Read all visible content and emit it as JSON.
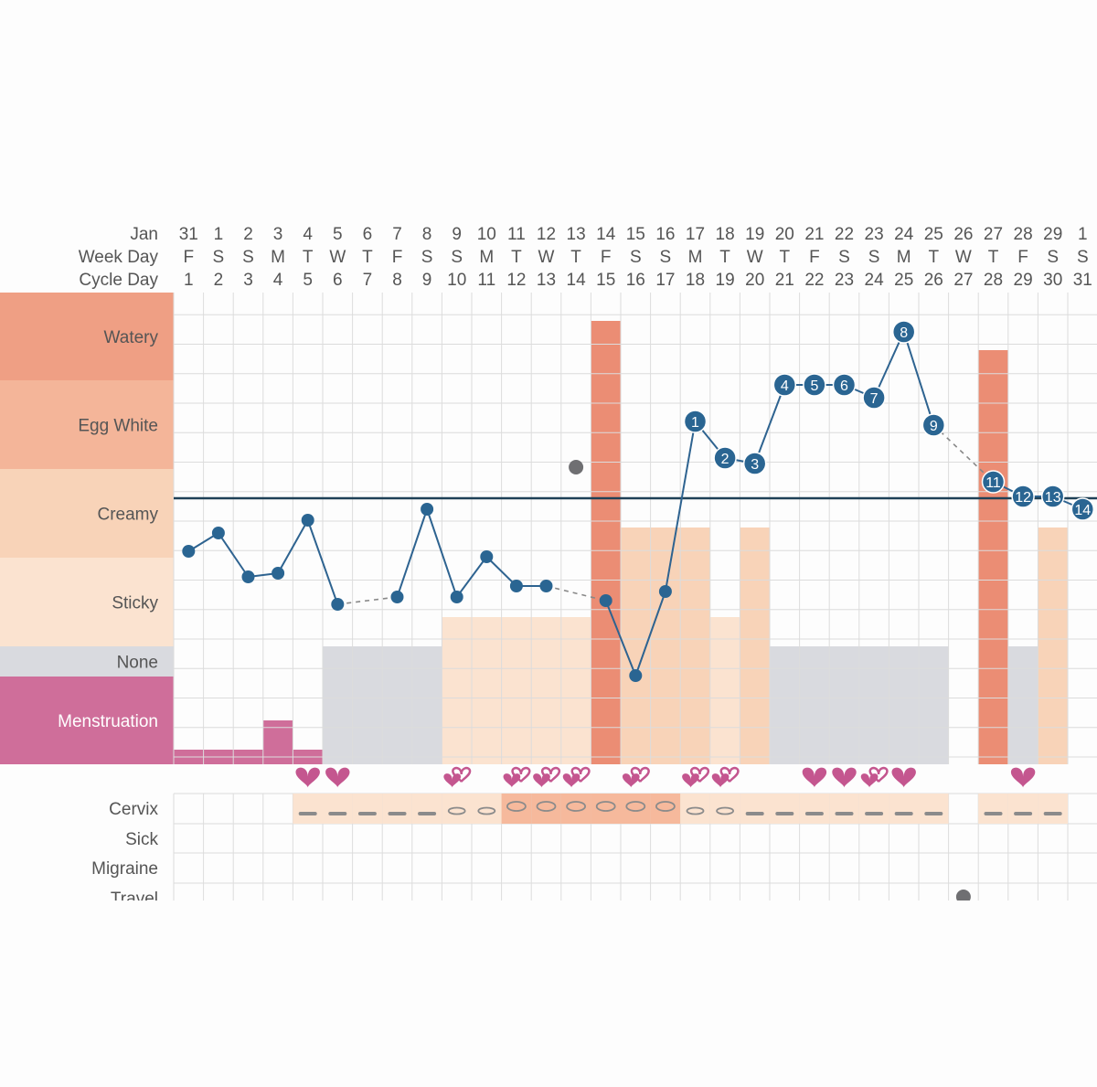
{
  "header": {
    "month_label": "Jan",
    "weekday_label": "Week Day",
    "cycle_day_label": "Cycle Day"
  },
  "chart_data": {
    "type": "line",
    "dates": [
      31,
      1,
      2,
      3,
      4,
      5,
      6,
      7,
      8,
      9,
      10,
      11,
      12,
      13,
      14,
      15,
      16,
      17,
      18,
      19,
      20,
      21,
      22,
      23,
      24,
      25,
      26,
      27,
      28,
      29,
      1
    ],
    "weekdays": [
      "F",
      "S",
      "S",
      "M",
      "T",
      "W",
      "T",
      "F",
      "S",
      "S",
      "M",
      "T",
      "W",
      "T",
      "F",
      "S",
      "S",
      "M",
      "T",
      "W",
      "T",
      "F",
      "S",
      "S",
      "M",
      "T",
      "W",
      "T",
      "F",
      "S",
      "S"
    ],
    "cycle_days": [
      1,
      2,
      3,
      4,
      5,
      6,
      7,
      8,
      9,
      10,
      11,
      12,
      13,
      14,
      15,
      16,
      17,
      18,
      19,
      20,
      21,
      22,
      23,
      24,
      25,
      26,
      27,
      28,
      29,
      30,
      31
    ],
    "y_categories": [
      "Menstruation",
      "None",
      "Sticky",
      "Creamy",
      "Egg White",
      "Watery"
    ],
    "fluid_colors": {
      "menstruation": "#cf6e9a",
      "none": "#d9dadf",
      "sticky": "#fbe3d0",
      "creamy": "#f8d3b8",
      "egg_white": "#f4b599",
      "watery": "#ef9f84",
      "peak": "#eb8d74"
    },
    "fluid_levels": [
      {
        "cycle_day": 1,
        "type": "menstruation",
        "level": 0.2
      },
      {
        "cycle_day": 2,
        "type": "menstruation",
        "level": 0.2
      },
      {
        "cycle_day": 3,
        "type": "menstruation",
        "level": 0.2
      },
      {
        "cycle_day": 4,
        "type": "menstruation",
        "level": 0.6
      },
      {
        "cycle_day": 5,
        "type": "menstruation",
        "level": 0.2
      },
      {
        "cycle_day": 6,
        "type": "none",
        "level": 1
      },
      {
        "cycle_day": 7,
        "type": "none",
        "level": 1
      },
      {
        "cycle_day": 8,
        "type": "none",
        "level": 1
      },
      {
        "cycle_day": 9,
        "type": "none",
        "level": 1
      },
      {
        "cycle_day": 10,
        "type": "sticky",
        "level": 1
      },
      {
        "cycle_day": 11,
        "type": "sticky",
        "level": 1
      },
      {
        "cycle_day": 12,
        "type": "sticky",
        "level": 1
      },
      {
        "cycle_day": 13,
        "type": "sticky",
        "level": 1
      },
      {
        "cycle_day": 14,
        "type": "sticky",
        "level": 1
      },
      {
        "cycle_day": 15,
        "type": "watery",
        "level": 1
      },
      {
        "cycle_day": 16,
        "type": "creamy",
        "level": 1
      },
      {
        "cycle_day": 17,
        "type": "creamy",
        "level": 1
      },
      {
        "cycle_day": 18,
        "type": "creamy",
        "level": 1
      },
      {
        "cycle_day": 19,
        "type": "sticky",
        "level": 1
      },
      {
        "cycle_day": 20,
        "type": "creamy",
        "level": 1
      },
      {
        "cycle_day": 21,
        "type": "none",
        "level": 1
      },
      {
        "cycle_day": 22,
        "type": "none",
        "level": 1
      },
      {
        "cycle_day": 23,
        "type": "none",
        "level": 1
      },
      {
        "cycle_day": 24,
        "type": "none",
        "level": 1
      },
      {
        "cycle_day": 25,
        "type": "none",
        "level": 1
      },
      {
        "cycle_day": 26,
        "type": "none",
        "level": 1
      },
      {
        "cycle_day": 28,
        "type": "watery",
        "level": 0.67
      },
      {
        "cycle_day": 29,
        "type": "none",
        "level": 1
      },
      {
        "cycle_day": 30,
        "type": "creamy",
        "level": 1
      }
    ],
    "temperature": [
      {
        "cycle_day": 1,
        "value": -0.58
      },
      {
        "cycle_day": 2,
        "value": -0.38
      },
      {
        "cycle_day": 3,
        "value": -0.86
      },
      {
        "cycle_day": 4,
        "value": -0.82
      },
      {
        "cycle_day": 5,
        "value": -0.24
      },
      {
        "cycle_day": 6,
        "value": -1.16
      },
      {
        "cycle_day": 8,
        "value": -1.08
      },
      {
        "cycle_day": 9,
        "value": -0.12
      },
      {
        "cycle_day": 10,
        "value": -1.08
      },
      {
        "cycle_day": 11,
        "value": -0.64
      },
      {
        "cycle_day": 12,
        "value": -0.96
      },
      {
        "cycle_day": 13,
        "value": -0.96
      },
      {
        "cycle_day": 15,
        "value": -1.12
      },
      {
        "cycle_day": 16,
        "value": -1.94
      },
      {
        "cycle_day": 17,
        "value": -1.02
      },
      {
        "cycle_day": 18,
        "value": 0.84,
        "label": "1"
      },
      {
        "cycle_day": 19,
        "value": 0.44,
        "label": "2"
      },
      {
        "cycle_day": 20,
        "value": 0.38,
        "label": "3"
      },
      {
        "cycle_day": 21,
        "value": 1.24,
        "label": "4"
      },
      {
        "cycle_day": 22,
        "value": 1.24,
        "label": "5"
      },
      {
        "cycle_day": 23,
        "value": 1.24,
        "label": "6"
      },
      {
        "cycle_day": 24,
        "value": 1.1,
        "label": "7"
      },
      {
        "cycle_day": 25,
        "value": 1.82,
        "label": "8"
      },
      {
        "cycle_day": 26,
        "value": 0.8,
        "label": "9"
      },
      {
        "cycle_day": 28,
        "value": 0.18,
        "label": "11"
      },
      {
        "cycle_day": 29,
        "value": 0.02,
        "label": "12"
      },
      {
        "cycle_day": 30,
        "value": 0.02,
        "label": "13"
      },
      {
        "cycle_day": 31,
        "value": -0.12,
        "label": "14"
      }
    ],
    "excluded_temperature": [
      {
        "cycle_day": 14,
        "value": 0.34
      }
    ],
    "dashed_gaps": [
      [
        6,
        8
      ],
      [
        13,
        15
      ],
      [
        26,
        28
      ]
    ],
    "coverline": 0,
    "intercourse": [
      {
        "cycle_day": 5,
        "kind": "heart"
      },
      {
        "cycle_day": 6,
        "kind": "heart"
      },
      {
        "cycle_day": 10,
        "kind": "double"
      },
      {
        "cycle_day": 12,
        "kind": "double"
      },
      {
        "cycle_day": 13,
        "kind": "double"
      },
      {
        "cycle_day": 14,
        "kind": "double"
      },
      {
        "cycle_day": 16,
        "kind": "double"
      },
      {
        "cycle_day": 18,
        "kind": "double"
      },
      {
        "cycle_day": 19,
        "kind": "double"
      },
      {
        "cycle_day": 22,
        "kind": "heart"
      },
      {
        "cycle_day": 23,
        "kind": "heart"
      },
      {
        "cycle_day": 24,
        "kind": "double"
      },
      {
        "cycle_day": 25,
        "kind": "heart"
      },
      {
        "cycle_day": 29,
        "kind": "heart"
      }
    ],
    "cervix": [
      {
        "cycle_day": 5,
        "state": "closed"
      },
      {
        "cycle_day": 6,
        "state": "closed"
      },
      {
        "cycle_day": 7,
        "state": "closed"
      },
      {
        "cycle_day": 8,
        "state": "closed"
      },
      {
        "cycle_day": 9,
        "state": "closed"
      },
      {
        "cycle_day": 10,
        "state": "medium"
      },
      {
        "cycle_day": 11,
        "state": "medium"
      },
      {
        "cycle_day": 12,
        "state": "open"
      },
      {
        "cycle_day": 13,
        "state": "open"
      },
      {
        "cycle_day": 14,
        "state": "open"
      },
      {
        "cycle_day": 15,
        "state": "open"
      },
      {
        "cycle_day": 16,
        "state": "open"
      },
      {
        "cycle_day": 17,
        "state": "open"
      },
      {
        "cycle_day": 18,
        "state": "medium"
      },
      {
        "cycle_day": 19,
        "state": "medium"
      },
      {
        "cycle_day": 20,
        "state": "closed"
      },
      {
        "cycle_day": 21,
        "state": "closed"
      },
      {
        "cycle_day": 22,
        "state": "closed"
      },
      {
        "cycle_day": 23,
        "state": "closed"
      },
      {
        "cycle_day": 24,
        "state": "closed"
      },
      {
        "cycle_day": 25,
        "state": "closed"
      },
      {
        "cycle_day": 26,
        "state": "closed"
      },
      {
        "cycle_day": 28,
        "state": "closed"
      },
      {
        "cycle_day": 29,
        "state": "closed"
      },
      {
        "cycle_day": 30,
        "state": "closed"
      }
    ],
    "sick": [],
    "migraine": [],
    "travel": [
      {
        "cycle_day": 27
      }
    ],
    "symptom_labels": [
      "Cervix",
      "Sick",
      "Migraine",
      "Travel"
    ],
    "colors": {
      "temp_line": "#2e6390",
      "temp_dot": "#2a6592",
      "excluded_dot": "#6f6f72",
      "coverline": "#1f4157",
      "heart": "#c4568f",
      "grid": "#dcdcdc"
    }
  }
}
